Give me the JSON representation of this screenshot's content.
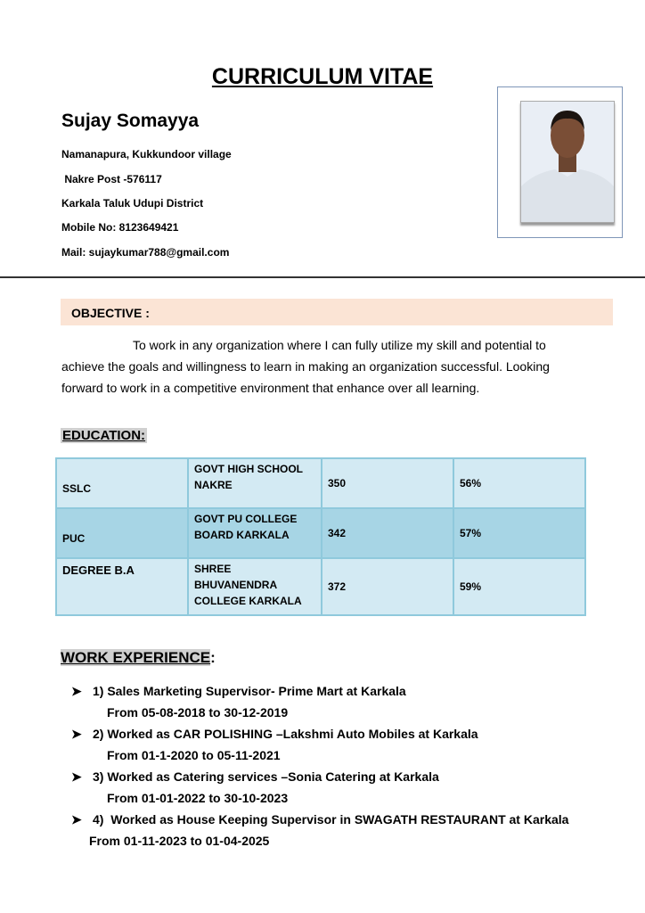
{
  "title": "CURRICULUM VITAE",
  "name": "Sujay Somayya",
  "address": [
    "Namanapura, Kukkundoor village",
    " Nakre Post -576117",
    "Karkala Taluk Udupi District",
    "Mobile No: 8123649421",
    "Mail: sujaykumar788@gmail.com"
  ],
  "objective": {
    "label": "OBJECTIVE :",
    "text": "To   work in any organization where I can fully utilize my skill and potential to achieve the goals and willingness to learn in making an organization successful. Looking forward to work in a competitive environment that enhance over all learning."
  },
  "education": {
    "heading": "EDUCATION:",
    "rows": [
      {
        "course": "SSLC",
        "institution": "GOVT HIGH SCHOOL NAKRE",
        "marks": "350",
        "percent": "56%"
      },
      {
        "course": "PUC",
        "institution": "GOVT PU COLLEGE BOARD KARKALA",
        "marks": "342",
        "percent": "57%"
      },
      {
        "course": "DEGREE B.A",
        "institution": "SHREE BHUVANENDRA COLLEGE KARKALA",
        "marks": "372",
        "percent": "59%"
      }
    ]
  },
  "work": {
    "heading": "WORK EXPERIENCE",
    "colon": ":",
    "items": [
      {
        "title": "1) Sales Marketing Supervisor- Prime Mart at Karkala",
        "period": "From 05-08-2018 to 30-12-2019"
      },
      {
        "title": "2) Worked as CAR POLISHING –Lakshmi Auto Mobiles at Karkala",
        "period": "From 01-1-2020 to 05-11-2021"
      },
      {
        "title": "3) Worked as Catering services –Sonia Catering at Karkala",
        "period": "From 01-01-2022 to 30-10-2023"
      },
      {
        "title": "4)  Worked as House Keeping Supervisor in SWAGATH RESTAURANT at Karkala",
        "period": "From 01-11-2023 to 01-04-2025"
      }
    ]
  }
}
